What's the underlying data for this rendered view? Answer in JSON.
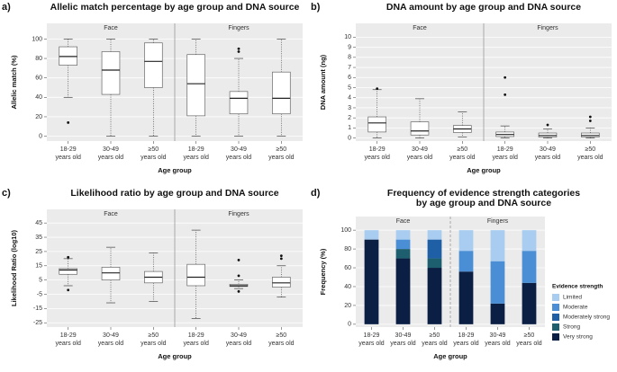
{
  "chart_data": [
    {
      "type": "box",
      "label": "a)",
      "title": "Allelic match percentage by age group and DNA source",
      "xlabel": "Age group",
      "ylabel": "Allelic match (%)",
      "facets": [
        "Face",
        "Fingers"
      ],
      "categories": [
        [
          "18-29",
          "years old"
        ],
        [
          "30-49",
          "years old"
        ],
        [
          "≥50",
          "years old"
        ],
        [
          "18-29",
          "years old"
        ],
        [
          "30-49",
          "years old"
        ],
        [
          "≥50",
          "years old"
        ]
      ],
      "boxes": [
        {
          "whislo": 40,
          "q1": 73,
          "med": 82,
          "q3": 92,
          "whishi": 100,
          "fliers": [
            14
          ]
        },
        {
          "whislo": 0,
          "q1": 43,
          "med": 68,
          "q3": 87,
          "whishi": 100,
          "fliers": []
        },
        {
          "whislo": 0,
          "q1": 50,
          "med": 77,
          "q3": 96,
          "whishi": 100,
          "fliers": []
        },
        {
          "whislo": 0,
          "q1": 21,
          "med": 54,
          "q3": 84,
          "whishi": 100,
          "fliers": []
        },
        {
          "whislo": 0,
          "q1": 23,
          "med": 39,
          "q3": 46,
          "whishi": 80,
          "fliers": [
            87,
            90
          ]
        },
        {
          "whislo": 0,
          "q1": 23,
          "med": 39,
          "q3": 66,
          "whishi": 100,
          "fliers": []
        }
      ],
      "ylim": [
        -5,
        105
      ],
      "yticks": [
        0,
        20,
        40,
        60,
        80,
        100
      ],
      "grid": true
    },
    {
      "type": "box",
      "label": "b)",
      "title": "DNA amount by age group and DNA source",
      "xlabel": "Age group",
      "ylabel": "DNA amount (ng)",
      "facets": [
        "Face",
        "Fingers"
      ],
      "categories": [
        [
          "18-29",
          "years old"
        ],
        [
          "30-49",
          "years old"
        ],
        [
          "≥50",
          "years old"
        ],
        [
          "18-29",
          "years old"
        ],
        [
          "30-49",
          "years old"
        ],
        [
          "≥50",
          "years old"
        ]
      ],
      "boxes": [
        {
          "whislo": 0,
          "q1": 0.6,
          "med": 1.5,
          "q3": 2.1,
          "whishi": 4.8,
          "fliers": [
            4.9
          ]
        },
        {
          "whislo": 0,
          "q1": 0.3,
          "med": 0.7,
          "q3": 1.6,
          "whishi": 3.9,
          "fliers": []
        },
        {
          "whislo": 0.1,
          "q1": 0.55,
          "med": 0.9,
          "q3": 1.25,
          "whishi": 2.6,
          "fliers": []
        },
        {
          "whislo": 0,
          "q1": 0.15,
          "med": 0.35,
          "q3": 0.6,
          "whishi": 1.2,
          "fliers": [
            4.3,
            6.0
          ]
        },
        {
          "whislo": 0,
          "q1": 0.1,
          "med": 0.25,
          "q3": 0.5,
          "whishi": 0.9,
          "fliers": [
            1.3
          ]
        },
        {
          "whislo": 0,
          "q1": 0.1,
          "med": 0.25,
          "q3": 0.5,
          "whishi": 1.0,
          "fliers": [
            1.7,
            2.1
          ]
        }
      ],
      "ylim": [
        -0.3,
        10.3
      ],
      "yticks": [
        0,
        1,
        2,
        3,
        4,
        5,
        6,
        7,
        8,
        9,
        10
      ],
      "grid": true
    },
    {
      "type": "box",
      "label": "c)",
      "title": "Likelihood ratio by age group and DNA source",
      "xlabel": "Age group",
      "ylabel": "Likelihood Ratio (log10)",
      "facets": [
        "Face",
        "Fingers"
      ],
      "categories": [
        [
          "18-29",
          "years old"
        ],
        [
          "30-49",
          "years old"
        ],
        [
          "≥50",
          "years old"
        ],
        [
          "18-29",
          "years old"
        ],
        [
          "30-49",
          "years old"
        ],
        [
          "≥50",
          "years old"
        ]
      ],
      "boxes": [
        {
          "whislo": 1,
          "q1": 9,
          "med": 12,
          "q3": 13,
          "whishi": 20,
          "fliers": [
            21,
            -2
          ]
        },
        {
          "whislo": -11,
          "q1": 5,
          "med": 10,
          "q3": 14,
          "whishi": 28,
          "fliers": []
        },
        {
          "whislo": -10,
          "q1": 3,
          "med": 7,
          "q3": 11,
          "whishi": 24,
          "fliers": []
        },
        {
          "whislo": -22,
          "q1": 1,
          "med": 7,
          "q3": 16,
          "whishi": 40,
          "fliers": []
        },
        {
          "whislo": -1,
          "q1": 0.5,
          "med": 1,
          "q3": 2,
          "whishi": 5,
          "fliers": [
            19,
            8,
            -3
          ]
        },
        {
          "whislo": -7,
          "q1": 0,
          "med": 3,
          "q3": 7,
          "whishi": 15,
          "fliers": [
            20,
            22
          ]
        }
      ],
      "ylim": [
        -28,
        47
      ],
      "yticks": [
        -25,
        -15,
        -5,
        5,
        15,
        25,
        35,
        45
      ],
      "grid": true
    },
    {
      "type": "stacked_bar",
      "label": "d)",
      "title": [
        "Frequency of evidence strength categories",
        "by age group and DNA source"
      ],
      "xlabel": "Age group",
      "ylabel": "Frequency (%)",
      "legend_title": "Evidence strength",
      "facets": [
        "Face",
        "Fingers"
      ],
      "categories": [
        [
          "18-29",
          "years old"
        ],
        [
          "30-49",
          "years old"
        ],
        [
          "≥50",
          "years old"
        ],
        [
          "18-29",
          "years old"
        ],
        [
          "30-49",
          "years old"
        ],
        [
          "≥50",
          "years old"
        ]
      ],
      "series": [
        {
          "name": "Very strong",
          "color": "#0b1f45",
          "values": [
            90,
            70,
            60,
            56,
            22,
            44
          ]
        },
        {
          "name": "Strong",
          "color": "#1d5f6e",
          "values": [
            0,
            10,
            10,
            0,
            0,
            0
          ]
        },
        {
          "name": "Moderately strong",
          "color": "#1f5fa6",
          "values": [
            0,
            0,
            20,
            0,
            0,
            0
          ]
        },
        {
          "name": "Moderate",
          "color": "#4a8fd6",
          "values": [
            0,
            10,
            0,
            22,
            45,
            34
          ]
        },
        {
          "name": "Limited",
          "color": "#a9cdf0",
          "values": [
            10,
            10,
            10,
            22,
            33,
            22
          ]
        }
      ],
      "ylim": [
        -3,
        103
      ],
      "yticks": [
        0,
        20,
        40,
        60,
        80,
        100
      ],
      "grid": true,
      "legend": "right"
    }
  ]
}
